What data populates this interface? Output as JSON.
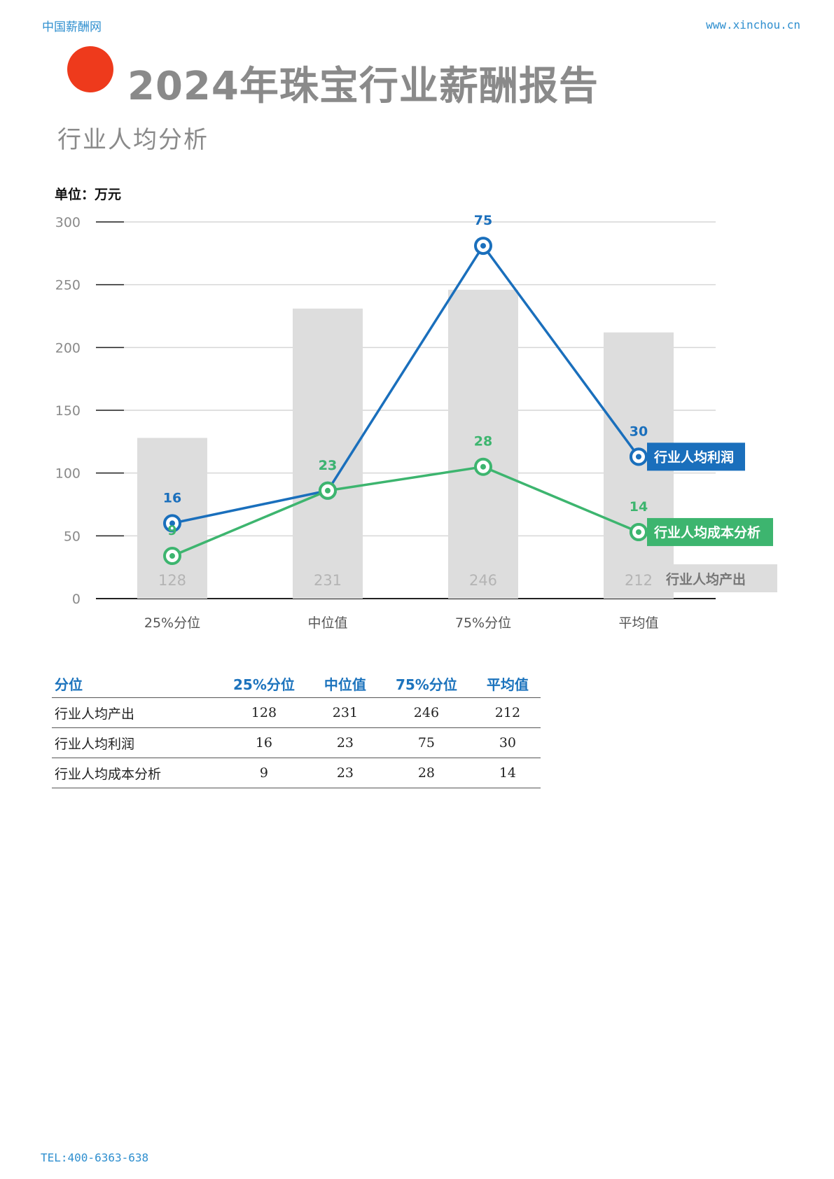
{
  "header": {
    "site_name": "中国薪酬网",
    "site_url": "www.xinchou.cn"
  },
  "title": "2024年珠宝行业薪酬报告",
  "section": "行业人均分析",
  "chart_data": {
    "type": "bar",
    "unit_label": "单位：万元",
    "categories": [
      "25%分位",
      "中位值",
      "75%分位",
      "平均值"
    ],
    "ylim": [
      0,
      300
    ],
    "yticks": [
      "0",
      "50",
      "100",
      "150",
      "200",
      "250",
      "300"
    ],
    "grid": true,
    "bar_series": {
      "name": "行业人均产出",
      "values": [
        128,
        231,
        246,
        212
      ],
      "color": "#dddddd",
      "label_color": "#b4b4b4"
    },
    "line_series": [
      {
        "name": "行业人均利润",
        "color": "#1a6fbc",
        "labels": [
          "16",
          "23",
          "75",
          "30"
        ],
        "plotted_values": [
          60,
          86,
          281,
          113
        ]
      },
      {
        "name": "行业人均成本分析",
        "color": "#3db56f",
        "labels": [
          "9",
          "23",
          "28",
          "14"
        ],
        "plotted_values": [
          34,
          86,
          105,
          53
        ]
      }
    ]
  },
  "table": {
    "header": [
      "分位",
      "25%分位",
      "中位值",
      "75%分位",
      "平均值"
    ],
    "rows": [
      [
        "行业人均产出",
        "128",
        "231",
        "246",
        "212"
      ],
      [
        "行业人均利润",
        "16",
        "23",
        "75",
        "30"
      ],
      [
        "行业人均成本分析",
        "9",
        "23",
        "28",
        "14"
      ]
    ]
  },
  "footer": {
    "tel": "TEL:400-6363-638"
  }
}
